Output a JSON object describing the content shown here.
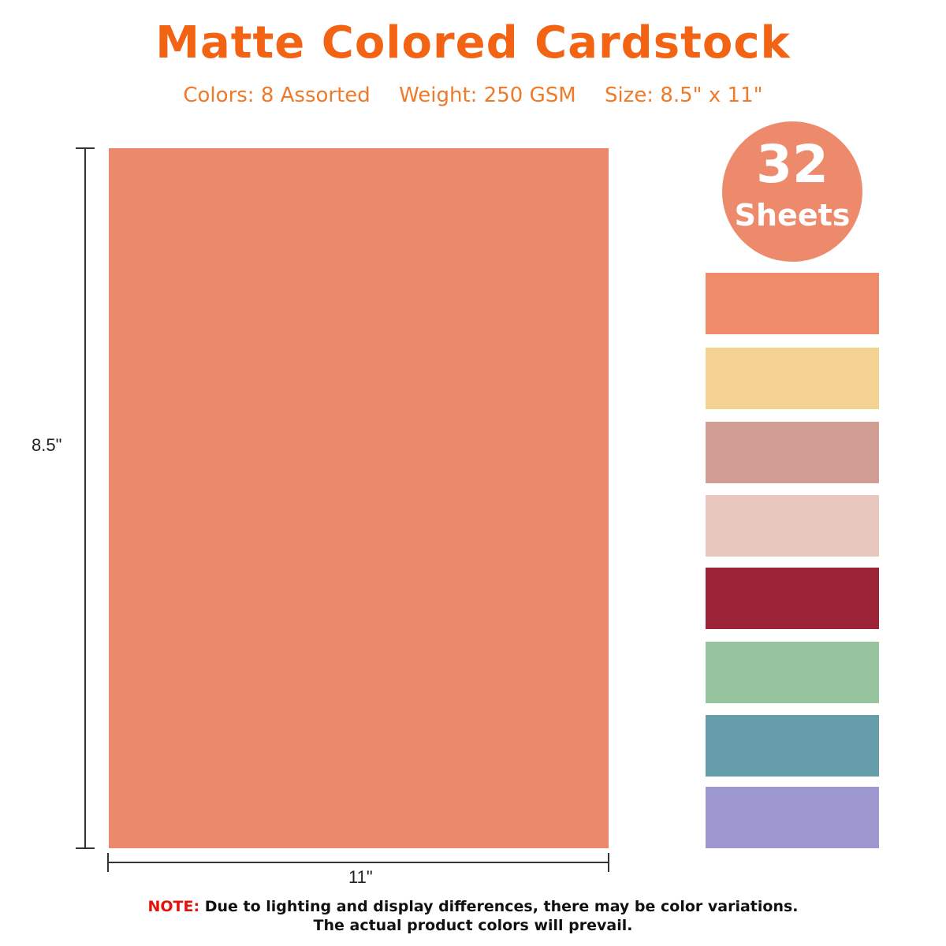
{
  "header": {
    "title": "Matte Colored Cardstock",
    "specs": {
      "colors": "Colors: 8 Assorted",
      "weight": "Weight: 250 GSM",
      "size": "Size: 8.5\" x 11\""
    }
  },
  "sheet": {
    "color": "#eb8a6b",
    "height_label": "8.5\"",
    "width_label": "11\""
  },
  "badge": {
    "number": "32",
    "unit": "Sheets",
    "color": "#ed8a6b"
  },
  "swatches": [
    {
      "color": "#ef8a6b"
    },
    {
      "color": "#f4d292"
    },
    {
      "color": "#d29e94"
    },
    {
      "color": "#e7c6bd"
    },
    {
      "color": "#9d2436"
    },
    {
      "color": "#98c39f"
    },
    {
      "color": "#669daa"
    },
    {
      "color": "#9d97cf"
    }
  ],
  "note": {
    "label": "NOTE:",
    "line1": " Due to lighting and display differences, there may be color variations.",
    "line2": "The actual product colors will prevail."
  }
}
